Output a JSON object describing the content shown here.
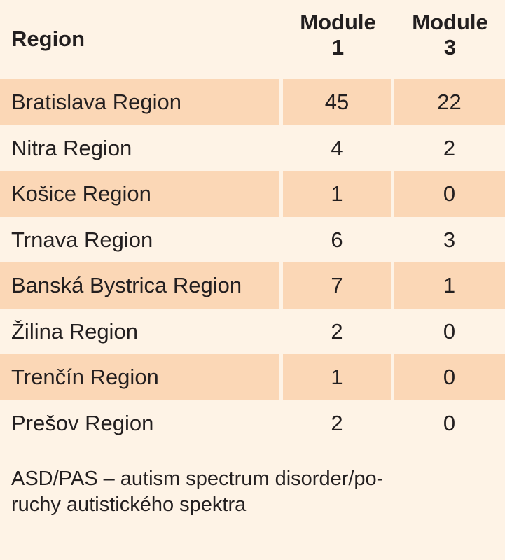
{
  "table": {
    "headers": {
      "region": "Region",
      "module1_line1": "Module",
      "module1_line2": "1",
      "module3_line1": "Module",
      "module3_line2": "3"
    },
    "rows": [
      {
        "region": "Bratislava Region",
        "module1": "45",
        "module3": "22"
      },
      {
        "region": "Nitra Region",
        "module1": "4",
        "module3": "2"
      },
      {
        "region": "Košice Region",
        "module1": "1",
        "module3": "0"
      },
      {
        "region": "Trnava Region",
        "module1": "6",
        "module3": "3"
      },
      {
        "region": "Banská Bystrica Region",
        "module1": "7",
        "module3": "1"
      },
      {
        "region": "Žilina Region",
        "module1": "2",
        "module3": "0"
      },
      {
        "region": "Trenčín Region",
        "module1": "1",
        "module3": "0"
      },
      {
        "region": "Prešov Region",
        "module1": "2",
        "module3": "0"
      }
    ],
    "footnote_line1": "ASD/PAS – autism spectrum disorder/po-",
    "footnote_line2": "ruchy autistického spektra"
  },
  "colors": {
    "background": "#fef3e6",
    "shaded_row": "#fbd7b6",
    "text": "#231f20"
  }
}
